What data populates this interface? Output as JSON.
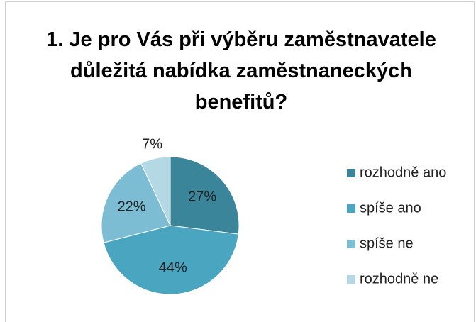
{
  "chart_data": {
    "type": "pie",
    "title": "1. Je pro Vás při výběru zaměstnavatele důležitá nabídka zaměstnaneckých benefitů?",
    "categories": [
      "rozhodně ano",
      "spíše ano",
      "spíše ne",
      "rozhodně ne"
    ],
    "values": [
      27,
      44,
      22,
      7
    ],
    "value_labels": [
      "27%",
      "44%",
      "22%",
      "7%"
    ],
    "colors": [
      "#3a8599",
      "#4aa6c0",
      "#7cbdd4",
      "#b4d9e5"
    ],
    "legend": "right"
  }
}
